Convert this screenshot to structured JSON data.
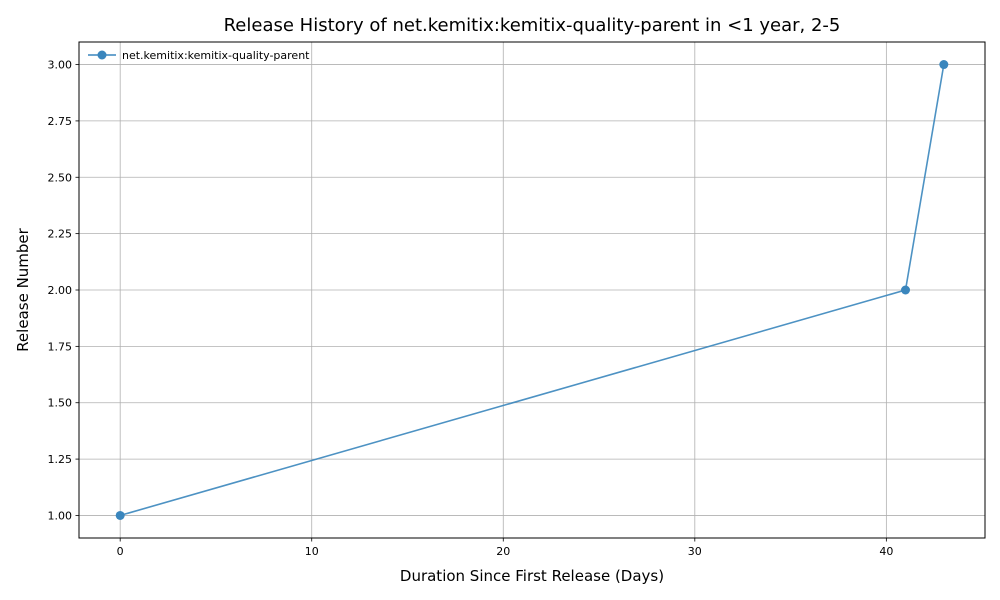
{
  "chart_data": {
    "type": "line",
    "title": "Release History of net.kemitix:kemitix-quality-parent in <1 year, 2-5",
    "xlabel": "Duration Since First Release (Days)",
    "ylabel": "Release Number",
    "xlim": [
      -2.15,
      45.15
    ],
    "ylim": [
      0.9,
      3.1
    ],
    "xticks": [
      0,
      10,
      20,
      30,
      40
    ],
    "xtick_labels": [
      "0",
      "10",
      "20",
      "30",
      "40"
    ],
    "yticks": [
      1.0,
      1.25,
      1.5,
      1.75,
      2.0,
      2.25,
      2.5,
      2.75,
      3.0
    ],
    "ytick_labels": [
      "1.00",
      "1.25",
      "1.50",
      "1.75",
      "2.00",
      "2.25",
      "2.50",
      "2.75",
      "3.00"
    ],
    "grid": true,
    "legend_position": "top-left",
    "series": [
      {
        "name": "net.kemitix:kemitix-quality-parent",
        "color": "#3a86bd",
        "marker": "circle",
        "x": [
          0,
          41,
          43
        ],
        "y": [
          1,
          2,
          3
        ]
      }
    ]
  }
}
